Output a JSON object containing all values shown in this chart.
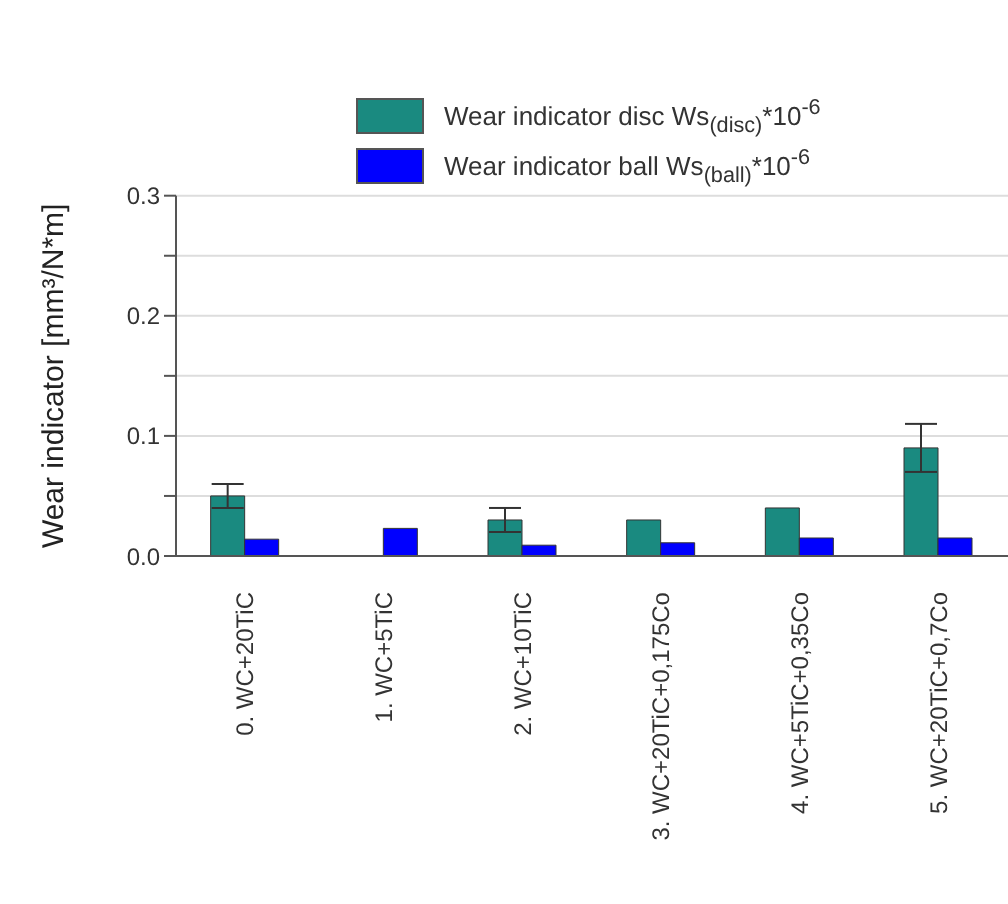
{
  "chart_data": {
    "type": "bar",
    "ylabel": "Wear indicator  [mm³/N*m]",
    "categories": [
      "0. WC+20TiC",
      "1. WC+5TiC",
      "2. WC+10TiC",
      "3. WC+20TiC+0,175Co",
      "4. WC+5TiC+0,35Co",
      "5. WC+20TiC+0,7Co"
    ],
    "series": [
      {
        "name": "Wear indicator disc   Ws$_{(disc)}$*10$^{-6}$",
        "color": "#1a8a80",
        "values": [
          0.05,
          null,
          0.03,
          0.03,
          0.04,
          0.09
        ],
        "errors": [
          0.01,
          null,
          0.01,
          null,
          null,
          0.02
        ]
      },
      {
        "name": "Wear indicator ball   Ws$_{(ball)}$*10$^{-6}$",
        "color": "#0000ff",
        "values": [
          0.014,
          0.023,
          0.009,
          0.011,
          0.015,
          0.015
        ]
      }
    ],
    "ylim": [
      0,
      0.3
    ],
    "yticks": [
      {
        "value": 0,
        "label": "0.0"
      },
      {
        "value": 0.05,
        "label": null
      },
      0.1,
      {
        "value": 0.15,
        "label": null
      },
      0.2,
      {
        "value": 0.25,
        "label": null
      },
      0.3
    ],
    "grid": "y",
    "legend": "top"
  }
}
